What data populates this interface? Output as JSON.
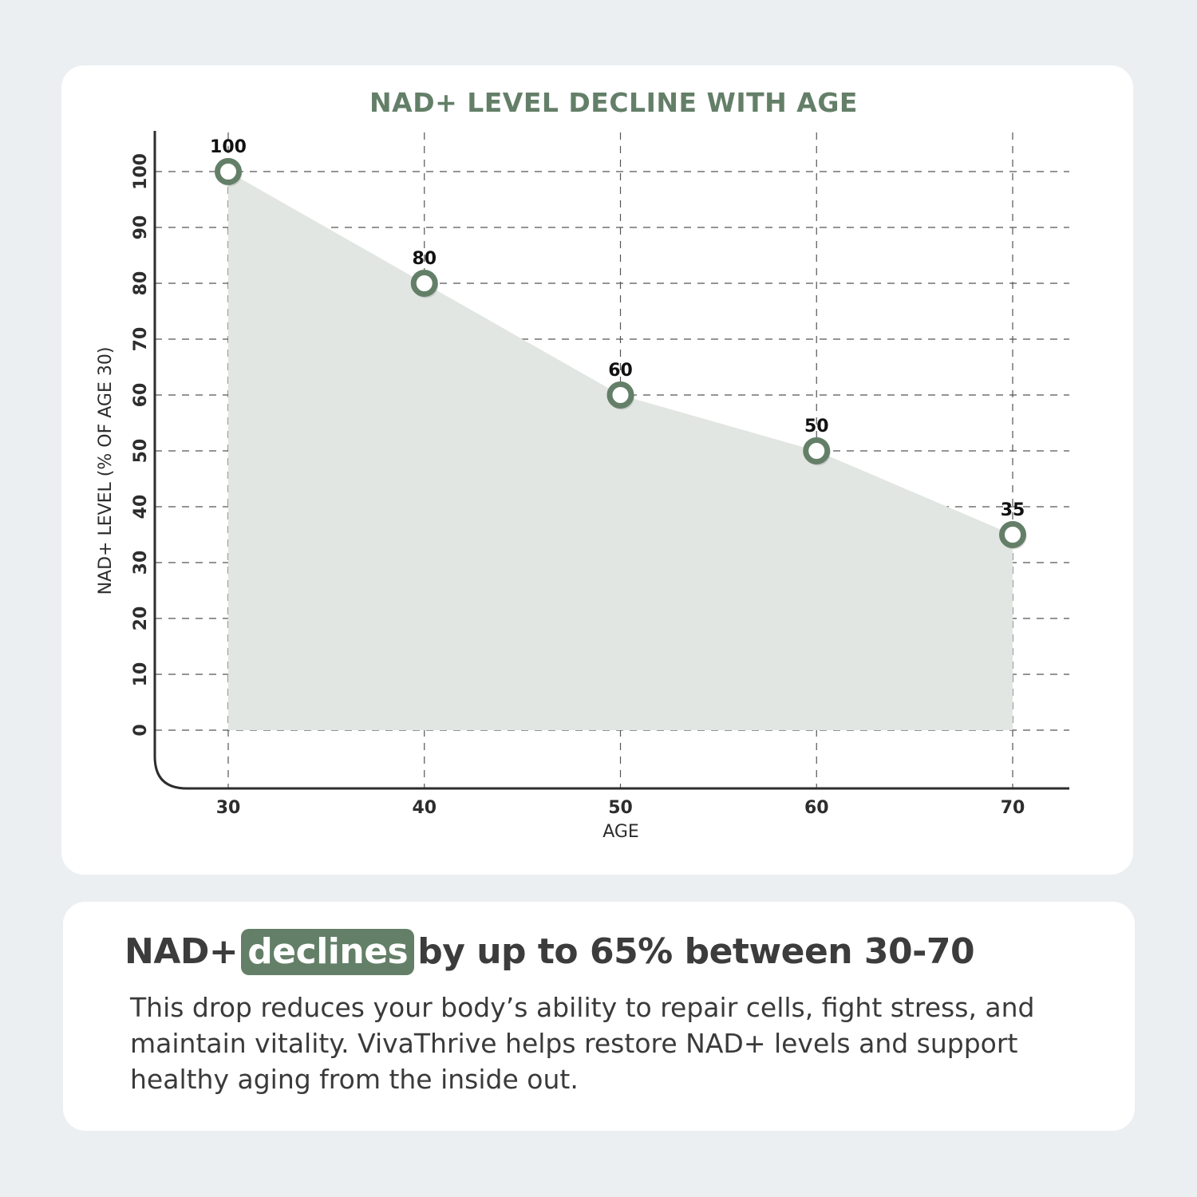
{
  "colors": {
    "accent": "#647f68",
    "fill": "#e1e6e2",
    "axis": "#2d2d2d",
    "grid": "#555555",
    "background": "#eceff1",
    "card": "#ffffff"
  },
  "chart_data": {
    "type": "area",
    "title": "NAD+ LEVEL DECLINE WITH AGE",
    "xlabel": "AGE",
    "ylabel": "NAD+ LEVEL (% OF AGE 30)",
    "x": [
      30,
      40,
      50,
      60,
      70
    ],
    "values": [
      100,
      80,
      60,
      50,
      35
    ],
    "data_labels": [
      "100",
      "80",
      "60",
      "50",
      "35"
    ],
    "x_ticks": [
      "30",
      "40",
      "50",
      "60",
      "70"
    ],
    "y_ticks": [
      "0",
      "10",
      "20",
      "30",
      "40",
      "50",
      "60",
      "70",
      "80",
      "90",
      "100"
    ],
    "xlim": [
      30,
      70
    ],
    "ylim": [
      0,
      100
    ],
    "grid": true,
    "markers": "hollow circles"
  },
  "info": {
    "headline_before": "NAD+",
    "headline_highlight": "declines",
    "headline_after": "by up to 65% between 30-70",
    "body": "This drop reduces your body’s ability to repair cells, fight stress, and maintain vitality. VivaThrive helps restore NAD+ levels and support healthy aging from the inside out."
  }
}
